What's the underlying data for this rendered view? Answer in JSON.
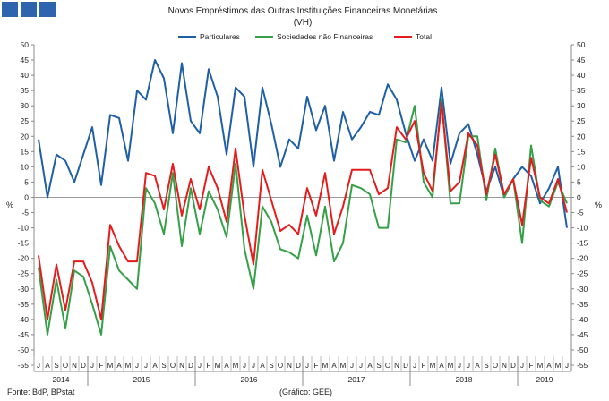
{
  "chart_data": {
    "type": "line",
    "title": "Novos Empréstimos das Outras Instituições Financeiras Monetárias",
    "subtitle": "(VH)",
    "ylabel_left": "%",
    "ylabel_right": "%",
    "ylim": [
      -55,
      50
    ],
    "yticks": [
      -55,
      -50,
      -45,
      -40,
      -35,
      -30,
      -25,
      -20,
      -15,
      -10,
      -5,
      0,
      5,
      10,
      15,
      20,
      25,
      30,
      35,
      40,
      45,
      50
    ],
    "grid": false,
    "legend_position": "top",
    "month_labels": [
      "J",
      "A",
      "S",
      "O",
      "N",
      "D",
      "J",
      "F",
      "M",
      "A",
      "M",
      "J",
      "J",
      "A",
      "S",
      "O",
      "N",
      "D",
      "J",
      "F",
      "M",
      "A",
      "M",
      "J",
      "J",
      "A",
      "S",
      "O",
      "N",
      "D",
      "J",
      "F",
      "M",
      "A",
      "M",
      "J",
      "J",
      "A",
      "S",
      "O",
      "N",
      "D",
      "J",
      "F",
      "M",
      "A",
      "M",
      "J",
      "J",
      "A",
      "S",
      "O",
      "N",
      "D",
      "J",
      "F",
      "M",
      "A",
      "M",
      "J"
    ],
    "year_labels": [
      {
        "label": "2014",
        "start": 0,
        "end": 5
      },
      {
        "label": "2015",
        "start": 6,
        "end": 17
      },
      {
        "label": "2016",
        "start": 18,
        "end": 29
      },
      {
        "label": "2017",
        "start": 30,
        "end": 41
      },
      {
        "label": "2018",
        "start": 42,
        "end": 53
      },
      {
        "label": "2019",
        "start": 54,
        "end": 59
      }
    ],
    "series": [
      {
        "name": "Particulares",
        "color": "#1f5fa6",
        "values": [
          19,
          0,
          14,
          12,
          5,
          14,
          23,
          4,
          27,
          26,
          12,
          35,
          32,
          45,
          39,
          21,
          44,
          25,
          21,
          42,
          33,
          14,
          36,
          33,
          10,
          36,
          24,
          10,
          19,
          16,
          33,
          22,
          30,
          12,
          28,
          19,
          23,
          28,
          27,
          37,
          32,
          21,
          12,
          19,
          12,
          36,
          11,
          21,
          24,
          14,
          2,
          10,
          0,
          6,
          10,
          7,
          -2,
          3,
          10,
          -10
        ]
      },
      {
        "name": "Sociedades não Financeiras",
        "color": "#35a048",
        "values": [
          -23,
          -45,
          -27,
          -43,
          -24,
          -26,
          -35,
          -45,
          -16,
          -24,
          -27,
          -30,
          3,
          -2,
          -12,
          8,
          -16,
          3,
          -12,
          2,
          -4,
          -13,
          11,
          -17,
          -30,
          -3,
          -8,
          -17,
          -18,
          -20,
          -6,
          -19,
          -3,
          -21,
          -15,
          4,
          3,
          1,
          -10,
          -10,
          19,
          18,
          30,
          5,
          0,
          32,
          -2,
          -2,
          20,
          20,
          -1,
          16,
          0,
          6,
          -15,
          17,
          -1,
          -3,
          5,
          -2
        ]
      },
      {
        "name": "Total",
        "color": "#e31d1d",
        "values": [
          -19,
          -40,
          -22,
          -37,
          -21,
          -21,
          -28,
          -40,
          -9,
          -16,
          -21,
          -21,
          8,
          7,
          -4,
          11,
          -6,
          6,
          -4,
          10,
          3,
          -8,
          16,
          -6,
          -22,
          9,
          -1,
          -11,
          -9,
          -12,
          3,
          -6,
          8,
          -12,
          -3,
          9,
          9,
          9,
          1,
          3,
          23,
          19,
          25,
          8,
          2,
          31,
          2,
          5,
          21,
          17,
          1,
          14,
          1,
          6,
          -9,
          13,
          0,
          -2,
          6,
          -5
        ]
      }
    ]
  },
  "footer": {
    "source": "Fonte: BdP, BPstat",
    "credit": "(Gráfico: GEE)"
  }
}
